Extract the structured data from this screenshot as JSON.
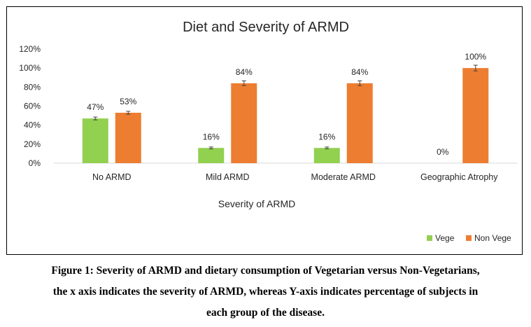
{
  "chart_data": {
    "type": "bar",
    "title": "Diet and Severity of ARMD",
    "xlabel": "Severity of ARMD",
    "ylabel": "",
    "categories": [
      "No  ARMD",
      "Mild ARMD",
      "Moderate ARMD",
      "Geographic Atrophy"
    ],
    "series": [
      {
        "name": "Vege",
        "color": "#92d050",
        "values": [
          47,
          16,
          16,
          0
        ],
        "labels": [
          "47%",
          "16%",
          "16%",
          "0%"
        ],
        "error": [
          1.5,
          1,
          1,
          0
        ]
      },
      {
        "name": "Non Vege",
        "color": "#ed7d31",
        "values": [
          53,
          84,
          84,
          100
        ],
        "labels": [
          "53%",
          "84%",
          "84%",
          "100%"
        ],
        "error": [
          1.5,
          2.5,
          2.5,
          3
        ]
      }
    ],
    "ylim": [
      0,
      120
    ],
    "yticks": [
      0,
      20,
      40,
      60,
      80,
      100,
      120
    ],
    "ytick_labels": [
      "0%",
      "20%",
      "40%",
      "60%",
      "80%",
      "100%",
      "120%"
    ],
    "grid": false,
    "legend": "bottom-right"
  },
  "caption": {
    "lines": [
      "Figure 1: Severity of ARMD and dietary consumption of Vegetarian versus Non-Vegetarians,",
      "the x axis indicates the severity of ARMD, whereas Y-axis indicates percentage of subjects in",
      "each group of the disease."
    ]
  }
}
